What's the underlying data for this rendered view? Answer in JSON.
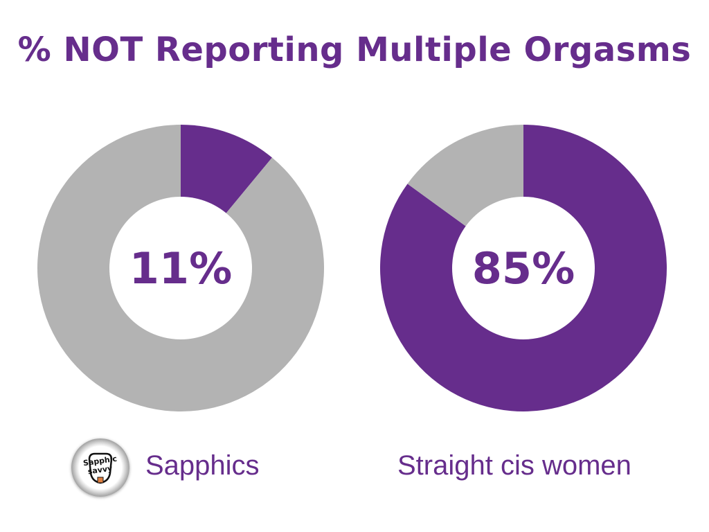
{
  "title": "% NOT Reporting Multiple Orgasms",
  "colors": {
    "accent": "#662d8c",
    "remainder": "#b3b3b3",
    "hole": "#ffffff"
  },
  "logo": {
    "line1": "Sapphic",
    "line2": "savvy"
  },
  "chart_data": [
    {
      "type": "pie",
      "label": "Sapphics",
      "center_text": "11%",
      "value": 11,
      "remainder": 89
    },
    {
      "type": "pie",
      "label": "Straight cis women",
      "center_text": "85%",
      "value": 85,
      "remainder": 15
    }
  ]
}
